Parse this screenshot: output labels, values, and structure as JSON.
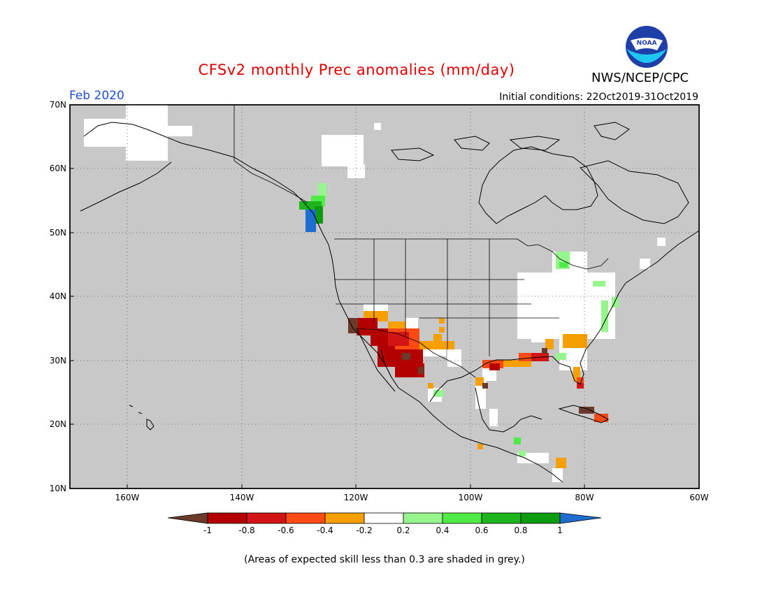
{
  "header": {
    "title": "CFSv2 monthly Prec anomalies (mm/day)",
    "agency": "NWS/NCEP/CPC",
    "logo_text": "NOAA",
    "month": "Feb 2020",
    "initial_conditions": "Initial conditions: 22Oct2019-31Oct2019"
  },
  "map": {
    "projection": "lat-lon",
    "lon_range": [
      -170,
      -60
    ],
    "lat_range": [
      10,
      70
    ],
    "lat_labels": [
      "70N",
      "60N",
      "50N",
      "40N",
      "30N",
      "20N",
      "10N"
    ],
    "lon_labels": [
      "160W",
      "140W",
      "120W",
      "100W",
      "80W",
      "60W"
    ],
    "background_color": "#c8c8c8",
    "grid": "dotted"
  },
  "colorbar": {
    "tick_labels": [
      "-1",
      "-0.8",
      "-0.6",
      "-0.4",
      "-0.2",
      "0.2",
      "0.4",
      "0.6",
      "0.8",
      "1"
    ],
    "colors": [
      "#6b3a2a",
      "#b40000",
      "#d21414",
      "#fa4b14",
      "#f5a000",
      "#ffffff",
      "#96f58c",
      "#50eb46",
      "#1eb41e",
      "#0f9b0f",
      "#1e6ed2"
    ]
  },
  "footnote": "(Areas of expected skill less than 0.3 are shaded in grey.)"
}
